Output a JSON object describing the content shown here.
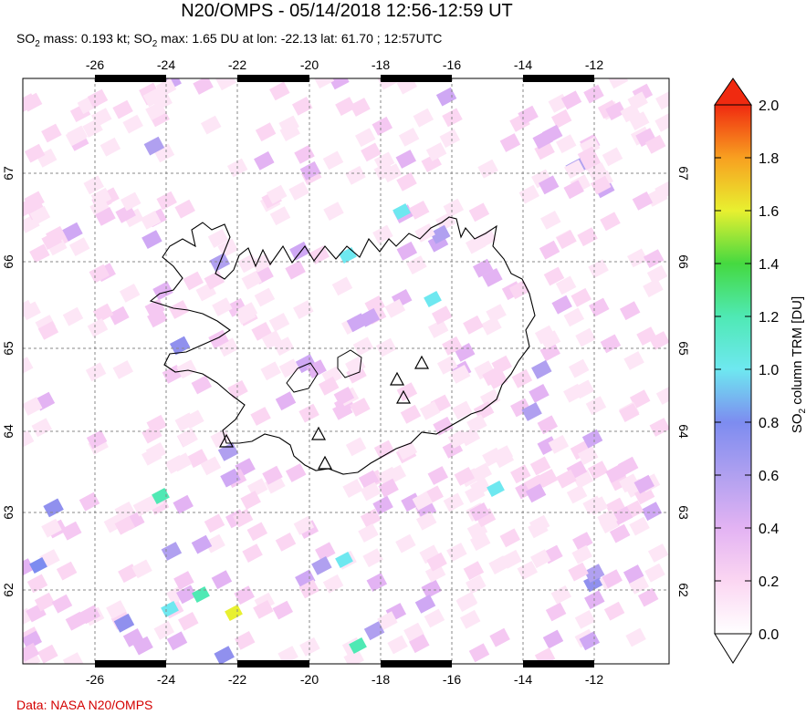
{
  "title": "N20/OMPS - 05/14/2018 12:56-12:59 UT",
  "subtitle": {
    "p1": "SO",
    "s1": "2",
    "p2": " mass: 0.193 kt; SO",
    "s2": "2",
    "p3": " max: 1.65 DU at lon: -22.13 lat: 61.70 ; 12:57UTC"
  },
  "credit": "Data: NASA N20/OMPS",
  "map": {
    "lon_ticks": [
      "-26",
      "-24",
      "-22",
      "-20",
      "-18",
      "-16",
      "-14",
      "-12"
    ],
    "lat_ticks": [
      "67",
      "66",
      "65",
      "64",
      "63",
      "62"
    ],
    "lon_range": [
      -28.1,
      -9.8
    ],
    "lat_range": [
      61.1,
      68.0
    ],
    "grid": "dashed",
    "volcano_marker": "triangle-icon"
  },
  "colorbar": {
    "label_p1": "SO",
    "label_s1": "2",
    "label_p2": " column TRM [DU]",
    "ticks": [
      "0.0",
      "0.2",
      "0.4",
      "0.6",
      "0.8",
      "1.0",
      "1.2",
      "1.4",
      "1.6",
      "1.8",
      "2.0"
    ],
    "range": [
      0,
      2
    ],
    "colors": [
      "#ffffff",
      "#fbd6f2",
      "#e3b3f3",
      "#b0a0f0",
      "#7d8cf0",
      "#6ee8f0",
      "#4fe9b4",
      "#45d940",
      "#e8f030",
      "#f8a020",
      "#f02a10"
    ]
  }
}
